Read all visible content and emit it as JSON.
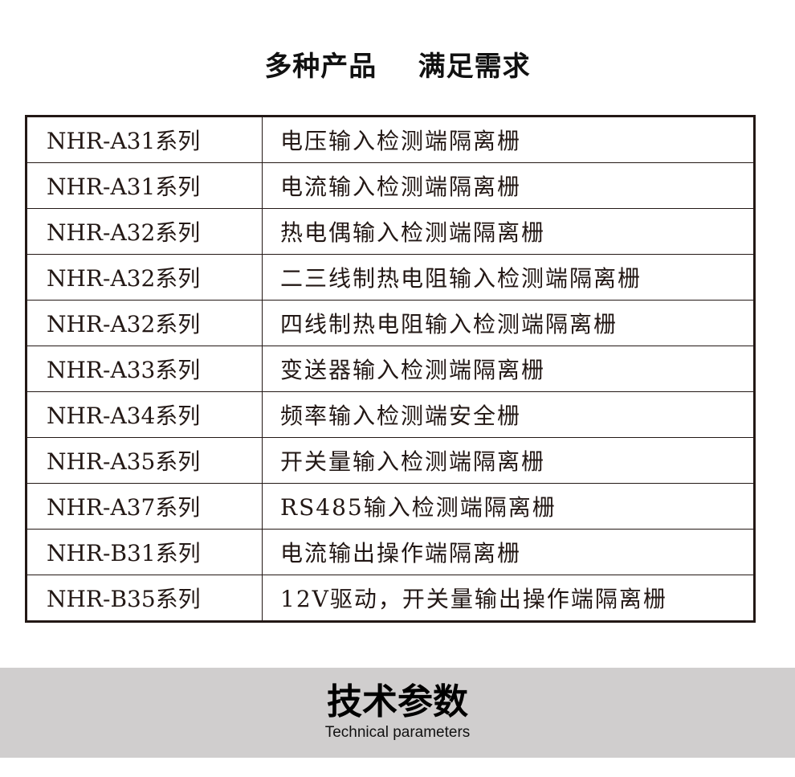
{
  "title": "多种产品    满足需求",
  "rows": [
    {
      "series": "NHR-A31系列",
      "desc": "电压输入检测端隔离栅"
    },
    {
      "series": "NHR-A31系列",
      "desc": "电流输入检测端隔离栅"
    },
    {
      "series": "NHR-A32系列",
      "desc": "热电偶输入检测端隔离栅"
    },
    {
      "series": "NHR-A32系列",
      "desc": "二三线制热电阻输入检测端隔离栅"
    },
    {
      "series": "NHR-A32系列",
      "desc": "四线制热电阻输入检测端隔离栅"
    },
    {
      "series": "NHR-A33系列",
      "desc": "变送器输入检测端隔离栅"
    },
    {
      "series": "NHR-A34系列",
      "desc": "频率输入检测端安全栅"
    },
    {
      "series": "NHR-A35系列",
      "desc": "开关量输入检测端隔离栅"
    },
    {
      "series": "NHR-A37系列",
      "desc": "RS485输入检测端隔离栅"
    },
    {
      "series": "NHR-B31系列",
      "desc": "电流输出操作端隔离栅"
    },
    {
      "series": "NHR-B35系列",
      "desc": "12V驱动，开关量输出操作端隔离栅"
    }
  ],
  "section": {
    "title": "技术参数",
    "subtitle": "Technical parameters"
  }
}
